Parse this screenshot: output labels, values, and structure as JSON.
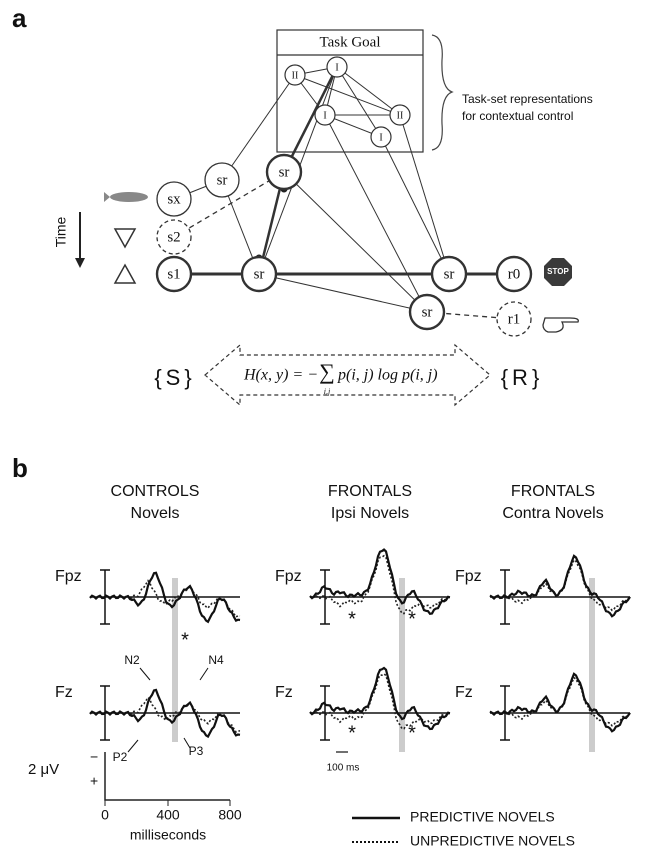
{
  "panel_a": {
    "label": "a",
    "task_goal": {
      "title": "Task Goal",
      "nodes": [
        "II",
        "I",
        "I",
        "II",
        "I"
      ]
    },
    "annotation": [
      "Task-set representations",
      "for contextual control"
    ],
    "time_label": "Time",
    "nodes": [
      "sx",
      "sr",
      "sr",
      "s2",
      "s1",
      "sr",
      "sr",
      "r0",
      "sr",
      "r1"
    ],
    "stop_sign": "STOP",
    "left_set": "{S}",
    "right_set": "{R}",
    "equation": {
      "lhs": "H(x, y) = −",
      "sum": "∑",
      "sum_index": "i,j",
      "rhs": "p(i, j) log p(i, j)"
    }
  },
  "panel_b": {
    "label": "b",
    "groups": [
      {
        "title": "CONTROLS",
        "subtitle": "Novels"
      },
      {
        "title": "FRONTALS",
        "subtitle": "Ipsi Novels"
      },
      {
        "title": "FRONTALS",
        "subtitle": "Contra Novels"
      }
    ],
    "electrodes": [
      "Fpz",
      "Fz"
    ],
    "components": [
      "N2",
      "N4",
      "P2",
      "P3"
    ],
    "asterisk": "*",
    "time_scale": "100 ms",
    "scale": {
      "amplitude": "2 μV",
      "minus": "−",
      "plus": "+",
      "ticks": [
        "0",
        "400",
        "800"
      ],
      "unit": "milliseconds"
    },
    "legend": [
      "PREDICTIVE NOVELS",
      "UNPREDICTIVE NOVELS"
    ]
  }
}
